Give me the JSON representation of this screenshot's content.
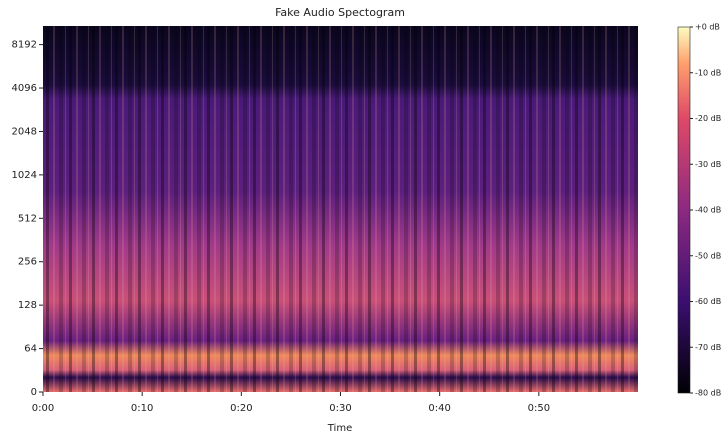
{
  "chart_data": {
    "type": "spectrogram",
    "title": "Fake Audio Spectogram",
    "x_label": "Time",
    "xlim": [
      0,
      60
    ],
    "xticks": [
      {
        "value": 0,
        "label": "0:00"
      },
      {
        "value": 10,
        "label": "0:10"
      },
      {
        "value": 20,
        "label": "0:20"
      },
      {
        "value": 30,
        "label": "0:30"
      },
      {
        "value": 40,
        "label": "0:40"
      },
      {
        "value": 50,
        "label": "0:50"
      }
    ],
    "yscale": "symlog",
    "linthresh": 64,
    "ylim": [
      0,
      11025
    ],
    "yticks": [
      0,
      64,
      128,
      256,
      512,
      1024,
      2048,
      4096,
      8192
    ],
    "colorbar": {
      "colormap": "magma",
      "lim": [
        -80,
        0
      ],
      "ticks": [
        {
          "value": 0,
          "label": "+0 dB"
        },
        {
          "value": -10,
          "label": "-10 dB"
        },
        {
          "value": -20,
          "label": "-20 dB"
        },
        {
          "value": -30,
          "label": "-30 dB"
        },
        {
          "value": -40,
          "label": "-40 dB"
        },
        {
          "value": -50,
          "label": "-50 dB"
        },
        {
          "value": -60,
          "label": "-60 dB"
        },
        {
          "value": -70,
          "label": "-70 dB"
        },
        {
          "value": -80,
          "label": "-80 dB"
        }
      ]
    }
  }
}
